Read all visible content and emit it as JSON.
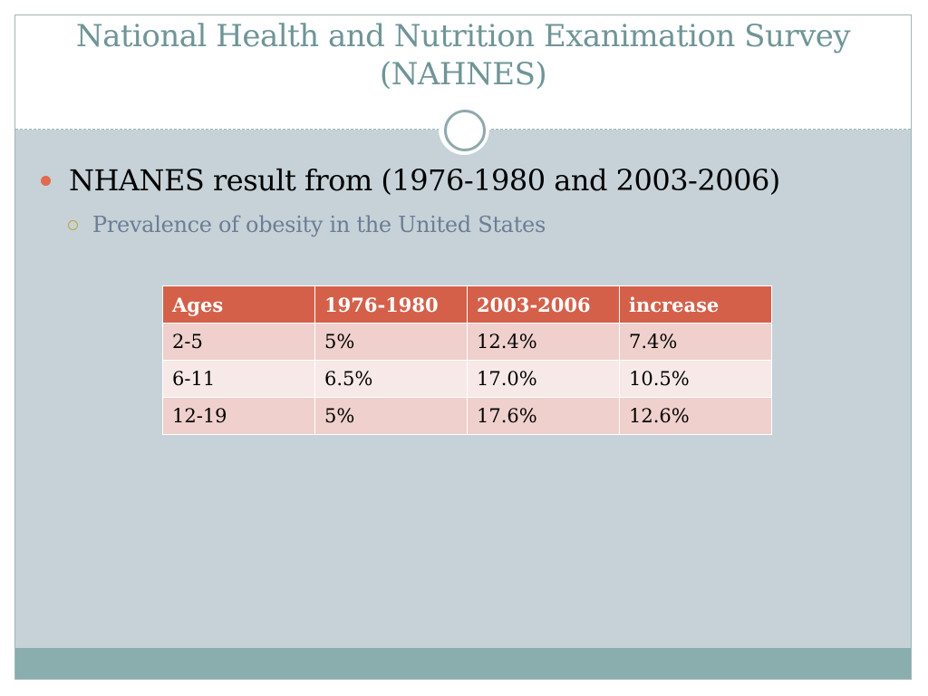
{
  "slide": {
    "title_line1": "National Health and Nutrition Exanimation Survey",
    "title_line2": "(NAHNES)",
    "bullet": "NHANES result from (1976-1980 and 2003-2006)",
    "sub_bullet": "Prevalence of obesity in the United States"
  },
  "table": {
    "headers": [
      "Ages",
      "1976-1980",
      "2003-2006",
      "increase"
    ],
    "rows": [
      [
        "2-5",
        "5%",
        "12.4%",
        "7.4%"
      ],
      [
        "6-11",
        "6.5%",
        "17.0%",
        "10.5%"
      ],
      [
        "12-19",
        "5%",
        "17.6%",
        "12.6%"
      ]
    ]
  },
  "colors": {
    "title": "#6f9596",
    "content_background": "#c6d2d8",
    "header_fill": "#d4604a",
    "row_fill_dark": "#efd0cc",
    "row_fill_light": "#f7e9e7",
    "bullet_dot": "#e26a4e",
    "sub_bullet_ring": "#c2a436",
    "footer_band": "#8aadad"
  }
}
